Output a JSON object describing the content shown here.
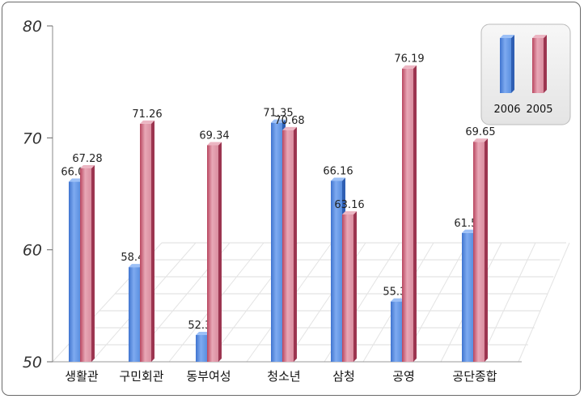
{
  "chart_data": {
    "type": "bar",
    "categories": [
      "생활관",
      "구민회관",
      "동부여성",
      "청소년",
      "삼청",
      "공영",
      "공단종합"
    ],
    "series": [
      {
        "name": "2006",
        "color": "#5a8fe0",
        "values": [
          66.08,
          58.45,
          52.39,
          71.35,
          66.16,
          55.38,
          61.51
        ]
      },
      {
        "name": "2005",
        "color": "#d46b84",
        "values": [
          67.28,
          71.26,
          69.34,
          70.68,
          63.16,
          76.19,
          69.65
        ]
      }
    ],
    "value_labels": {
      "2006": [
        "66.08",
        "58.45",
        "52.39",
        "71.35",
        "66.16",
        "55.38",
        "61.51"
      ],
      "2005": [
        "67.28",
        "71.26",
        "69.34",
        "70.68",
        "63.16",
        "76.19",
        "69.65"
      ]
    },
    "ylim": [
      50,
      80
    ],
    "yticks": [
      50,
      60,
      70,
      80
    ],
    "ytick_labels": [
      "50",
      "60",
      "70",
      "80"
    ],
    "legend_position": "top-right",
    "grid": false,
    "title": "",
    "xlabel": "",
    "ylabel": ""
  }
}
